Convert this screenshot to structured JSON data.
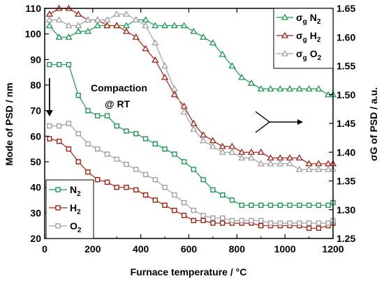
{
  "chart_data": {
    "type": "scatter",
    "xlabel": "Furnace temperature / °C",
    "ylabel_left": "Mode of PSD / nm",
    "ylabel_right": "σG of PSD / a.u.",
    "xlim": [
      0,
      1200
    ],
    "ylim_left": [
      20,
      110
    ],
    "ylim_right": [
      1.25,
      1.65
    ],
    "x_ticks": [
      "0",
      "200",
      "400",
      "600",
      "800",
      "1000",
      "1200"
    ],
    "y_left_ticks": [
      "20",
      "30",
      "40",
      "50",
      "60",
      "70",
      "80",
      "90",
      "100",
      "110"
    ],
    "y_right_ticks": [
      "1.25",
      "1.30",
      "1.35",
      "1.40",
      "1.45",
      "1.50",
      "1.55",
      "1.60",
      "1.65"
    ],
    "annotation": [
      "Compaction",
      "@ RT"
    ],
    "colors": {
      "N2": "#1a9850",
      "H2": "#a02010",
      "O2": "#a0a0a0"
    },
    "legend_mode": [
      {
        "gas": "N2",
        "label_main": "N",
        "label_sub": "2",
        "marker": "square"
      },
      {
        "gas": "H2",
        "label_main": "H",
        "label_sub": "2",
        "marker": "square"
      },
      {
        "gas": "O2",
        "label_main": "O",
        "label_sub": "2",
        "marker": "square"
      }
    ],
    "legend_sigma": [
      {
        "gas": "N2",
        "sigma": "σ",
        "sigma_sub": "g",
        "label_main": "N",
        "label_sub": "2",
        "marker": "triangle"
      },
      {
        "gas": "H2",
        "sigma": "σ",
        "sigma_sub": "g",
        "label_main": "H",
        "label_sub": "2",
        "marker": "triangle"
      },
      {
        "gas": "O2",
        "sigma": "σ",
        "sigma_sub": "g",
        "label_main": "O",
        "label_sub": "2",
        "marker": "triangle"
      }
    ],
    "series": [
      {
        "name": "N2",
        "axis": "left",
        "marker": "square",
        "x": [
          20,
          60,
          100,
          140,
          180,
          220,
          260,
          300,
          340,
          380,
          420,
          460,
          500,
          540,
          580,
          620,
          660,
          700,
          740,
          780,
          820,
          860,
          900,
          940,
          980,
          1020,
          1060,
          1100,
          1140,
          1180,
          1200
        ],
        "y": [
          88,
          88,
          88,
          76,
          70,
          68,
          68,
          64,
          62,
          61,
          59,
          57,
          55,
          53,
          50,
          47,
          43,
          39,
          37,
          35,
          33,
          33,
          33,
          33,
          33,
          33,
          33,
          33,
          33,
          33,
          34
        ]
      },
      {
        "name": "H2",
        "axis": "left",
        "marker": "square",
        "x": [
          20,
          60,
          100,
          140,
          180,
          220,
          260,
          300,
          340,
          380,
          420,
          460,
          500,
          540,
          580,
          620,
          660,
          700,
          740,
          780,
          820,
          860,
          900,
          940,
          980,
          1020,
          1060,
          1100,
          1140,
          1180,
          1200
        ],
        "y": [
          59,
          58,
          55,
          50,
          46,
          43,
          42,
          40,
          40,
          39,
          37,
          35,
          33,
          31,
          29,
          27,
          27,
          26,
          26,
          26,
          26,
          26,
          25,
          25,
          25,
          25,
          25,
          24,
          24,
          25,
          26
        ]
      },
      {
        "name": "O2",
        "axis": "left",
        "marker": "square",
        "x": [
          20,
          60,
          100,
          140,
          180,
          220,
          260,
          300,
          340,
          380,
          420,
          460,
          500,
          540,
          580,
          620,
          660,
          700,
          740,
          780,
          820,
          860,
          900,
          940,
          980,
          1020,
          1060,
          1100,
          1140,
          1180,
          1200
        ],
        "y": [
          64,
          64,
          65,
          61,
          57,
          55,
          53,
          51,
          49,
          47,
          45,
          43,
          40,
          37,
          34,
          31,
          29,
          28,
          28,
          27,
          27,
          27,
          27,
          26,
          26,
          26,
          26,
          26,
          26,
          26,
          27
        ]
      },
      {
        "name": "σg N2",
        "axis": "right",
        "marker": "triangle",
        "x": [
          20,
          60,
          100,
          140,
          180,
          220,
          260,
          300,
          340,
          380,
          420,
          460,
          500,
          540,
          580,
          620,
          660,
          700,
          740,
          780,
          820,
          860,
          900,
          940,
          980,
          1020,
          1060,
          1100,
          1140,
          1180,
          1200
        ],
        "y": [
          1.62,
          1.6,
          1.6,
          1.61,
          1.61,
          1.62,
          1.62,
          1.62,
          1.62,
          1.63,
          1.63,
          1.62,
          1.62,
          1.62,
          1.62,
          1.61,
          1.6,
          1.59,
          1.57,
          1.55,
          1.53,
          1.52,
          1.51,
          1.51,
          1.51,
          1.51,
          1.51,
          1.51,
          1.51,
          1.5,
          1.5
        ]
      },
      {
        "name": "σg H2",
        "axis": "right",
        "marker": "triangle",
        "x": [
          20,
          60,
          100,
          140,
          180,
          220,
          260,
          300,
          340,
          380,
          420,
          460,
          500,
          540,
          580,
          620,
          660,
          700,
          740,
          780,
          820,
          860,
          900,
          940,
          980,
          1020,
          1060,
          1100,
          1140,
          1180,
          1200
        ],
        "y": [
          1.64,
          1.65,
          1.65,
          1.64,
          1.63,
          1.63,
          1.62,
          1.62,
          1.61,
          1.6,
          1.58,
          1.56,
          1.53,
          1.5,
          1.48,
          1.45,
          1.43,
          1.42,
          1.41,
          1.41,
          1.4,
          1.4,
          1.4,
          1.39,
          1.39,
          1.39,
          1.39,
          1.38,
          1.38,
          1.38,
          1.38
        ]
      },
      {
        "name": "σg O2",
        "axis": "right",
        "marker": "triangle",
        "x": [
          20,
          60,
          100,
          140,
          180,
          220,
          260,
          300,
          340,
          380,
          420,
          460,
          500,
          540,
          580,
          620,
          660,
          700,
          740,
          780,
          820,
          860,
          900,
          940,
          980,
          1020,
          1060,
          1100,
          1140,
          1180,
          1200
        ],
        "y": [
          1.63,
          1.63,
          1.62,
          1.62,
          1.63,
          1.63,
          1.63,
          1.64,
          1.64,
          1.63,
          1.62,
          1.59,
          1.55,
          1.51,
          1.47,
          1.44,
          1.42,
          1.41,
          1.4,
          1.4,
          1.39,
          1.39,
          1.38,
          1.38,
          1.38,
          1.38,
          1.37,
          1.37,
          1.37,
          1.37,
          1.37
        ]
      }
    ]
  }
}
